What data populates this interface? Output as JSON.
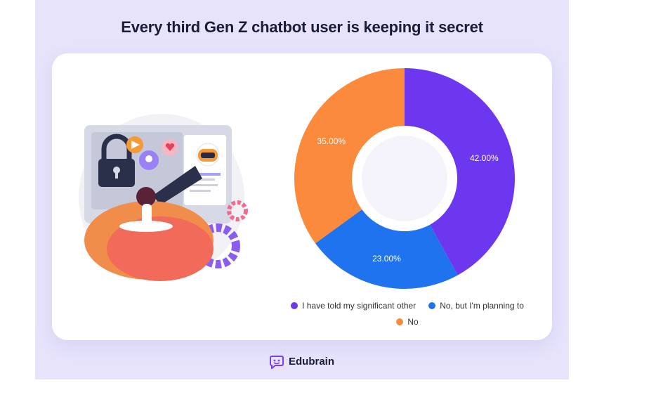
{
  "title": "Every third Gen Z chatbot user is keeping it secret",
  "brand": {
    "name": "Edubrain",
    "logo_icon": "chat-bubble-face-icon",
    "logo_color": "#7b3ff2"
  },
  "illustration": {
    "description_icon": "person-with-telescope-and-lock-screen-illustration"
  },
  "chart_data": {
    "type": "pie",
    "style": "donut",
    "slices": [
      {
        "label": "I have told my significant other",
        "value": 42.0,
        "display": "42.00%",
        "color": "#6c37ef"
      },
      {
        "label": "No, but I'm planning to",
        "value": 23.0,
        "display": "23.00%",
        "color": "#1f73ef"
      },
      {
        "label": "No",
        "value": 35.0,
        "display": "35.00%",
        "color": "#fb8a3c"
      }
    ],
    "legend_position": "bottom"
  }
}
